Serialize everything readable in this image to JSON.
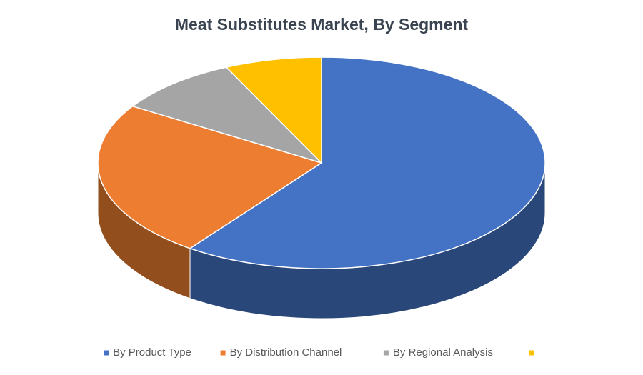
{
  "chart_data": {
    "type": "pie3d",
    "title": "Meat Substitutes Market, By Segment",
    "categories": [
      "By Product Type",
      "By Distribution Channel",
      "By Regional Analysis",
      null
    ],
    "values": [
      60,
      24,
      9,
      7
    ],
    "colors": [
      "#4472c4",
      "#ed7d31",
      "#a5a5a5",
      "#ffc000"
    ],
    "legend": "bottom"
  }
}
